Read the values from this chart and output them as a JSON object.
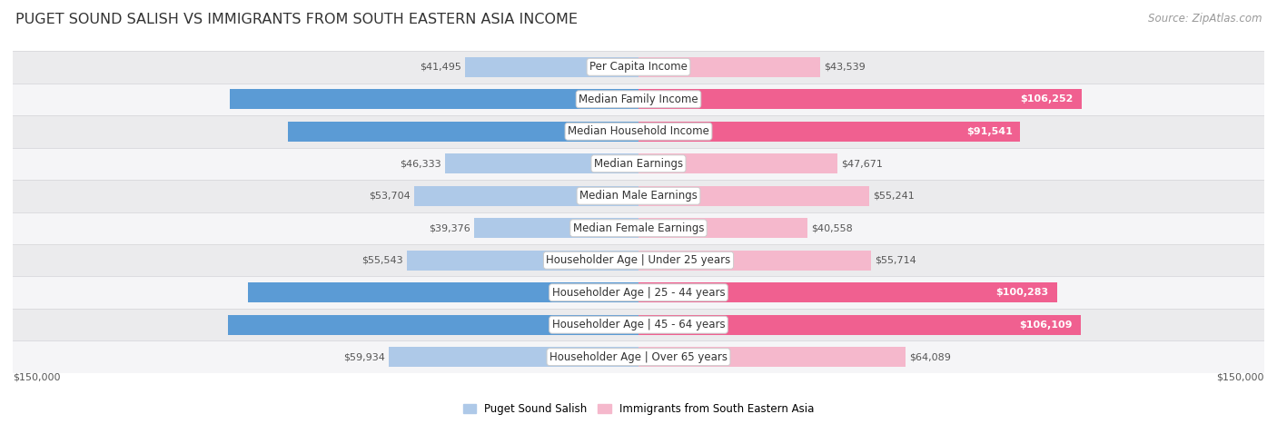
{
  "title": "PUGET SOUND SALISH VS IMMIGRANTS FROM SOUTH EASTERN ASIA INCOME",
  "source": "Source: ZipAtlas.com",
  "categories": [
    "Per Capita Income",
    "Median Family Income",
    "Median Household Income",
    "Median Earnings",
    "Median Male Earnings",
    "Median Female Earnings",
    "Householder Age | Under 25 years",
    "Householder Age | 25 - 44 years",
    "Householder Age | 45 - 64 years",
    "Householder Age | Over 65 years"
  ],
  "left_values": [
    41495,
    97958,
    84011,
    46333,
    53704,
    39376,
    55543,
    93661,
    98340,
    59934
  ],
  "right_values": [
    43539,
    106252,
    91541,
    47671,
    55241,
    40558,
    55714,
    100283,
    106109,
    64089
  ],
  "left_label": "Puget Sound Salish",
  "right_label": "Immigrants from South Eastern Asia",
  "left_color_light": "#aec9e8",
  "left_color_dark": "#5b9bd5",
  "right_color_light": "#f5b8cc",
  "right_color_dark": "#f06090",
  "max_value": 150000,
  "axis_label": "$150,000",
  "title_fontsize": 11.5,
  "label_fontsize": 8.5,
  "value_fontsize": 8.0,
  "source_fontsize": 8.5,
  "threshold_dark": 70000
}
